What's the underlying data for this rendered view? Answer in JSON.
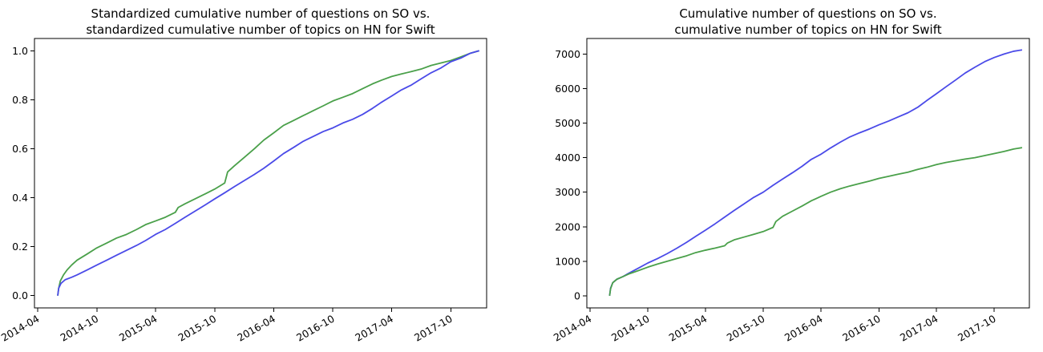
{
  "chart_data": [
    {
      "type": "line",
      "title_lines": [
        "Standardized cumulative number of questions on SO vs.",
        "standardized cumulative number of topics on HN for Swift"
      ],
      "xlabel": "",
      "ylabel": "",
      "x_type": "date",
      "xlim": [
        "2014-03-22",
        "2018-01-20"
      ],
      "ylim": [
        -0.05,
        1.05
      ],
      "yticks": [
        0.0,
        0.2,
        0.4,
        0.6,
        0.8,
        1.0
      ],
      "ytick_labels": [
        "0.0",
        "0.2",
        "0.4",
        "0.6",
        "0.8",
        "1.0"
      ],
      "xticks": [
        "2014-04-01",
        "2014-10-01",
        "2015-04-01",
        "2015-10-01",
        "2016-04-01",
        "2016-10-01",
        "2017-04-01",
        "2017-10-01"
      ],
      "xtick_labels": [
        "2014-04",
        "2014-10",
        "2015-04",
        "2015-10",
        "2016-04",
        "2016-10",
        "2017-04",
        "2017-10"
      ],
      "grid": false,
      "series": [
        {
          "color": "#4aa04a",
          "x": [
            "2014-06-02",
            "2014-06-05",
            "2014-06-10",
            "2014-06-20",
            "2014-07-01",
            "2014-07-15",
            "2014-08-01",
            "2014-09-01",
            "2014-10-01",
            "2014-11-01",
            "2014-12-01",
            "2015-01-01",
            "2015-02-01",
            "2015-03-01",
            "2015-04-01",
            "2015-05-01",
            "2015-06-01",
            "2015-06-10",
            "2015-07-01",
            "2015-08-01",
            "2015-09-01",
            "2015-10-01",
            "2015-11-01",
            "2015-11-10",
            "2015-12-01",
            "2016-01-01",
            "2016-02-01",
            "2016-03-01",
            "2016-04-01",
            "2016-05-01",
            "2016-06-01",
            "2016-07-01",
            "2016-08-01",
            "2016-09-01",
            "2016-10-01",
            "2016-11-01",
            "2016-12-01",
            "2017-01-01",
            "2017-02-01",
            "2017-03-01",
            "2017-04-01",
            "2017-05-01",
            "2017-06-01",
            "2017-07-01",
            "2017-08-01",
            "2017-09-01",
            "2017-10-01",
            "2017-11-01",
            "2017-12-01",
            "2017-12-28"
          ],
          "y": [
            0.0,
            0.03,
            0.06,
            0.085,
            0.105,
            0.125,
            0.145,
            0.17,
            0.195,
            0.215,
            0.235,
            0.25,
            0.27,
            0.29,
            0.305,
            0.32,
            0.34,
            0.36,
            0.375,
            0.395,
            0.415,
            0.435,
            0.46,
            0.505,
            0.53,
            0.565,
            0.6,
            0.635,
            0.665,
            0.695,
            0.715,
            0.735,
            0.755,
            0.775,
            0.795,
            0.81,
            0.825,
            0.845,
            0.865,
            0.88,
            0.895,
            0.905,
            0.915,
            0.925,
            0.94,
            0.95,
            0.96,
            0.975,
            0.99,
            1.0
          ]
        },
        {
          "color": "#4a4ae8",
          "x": [
            "2014-06-02",
            "2014-06-05",
            "2014-06-12",
            "2014-06-25",
            "2014-07-15",
            "2014-08-01",
            "2014-09-01",
            "2014-10-01",
            "2014-11-01",
            "2014-12-01",
            "2015-01-01",
            "2015-02-01",
            "2015-03-01",
            "2015-04-01",
            "2015-05-01",
            "2015-06-01",
            "2015-07-01",
            "2015-08-01",
            "2015-09-01",
            "2015-10-01",
            "2015-11-01",
            "2015-12-01",
            "2016-01-01",
            "2016-02-01",
            "2016-03-01",
            "2016-04-01",
            "2016-05-01",
            "2016-06-01",
            "2016-07-01",
            "2016-08-01",
            "2016-09-01",
            "2016-10-01",
            "2016-11-01",
            "2016-12-01",
            "2017-01-01",
            "2017-02-01",
            "2017-03-01",
            "2017-04-01",
            "2017-05-01",
            "2017-06-01",
            "2017-07-01",
            "2017-08-01",
            "2017-09-01",
            "2017-10-01",
            "2017-11-01",
            "2017-12-01",
            "2017-12-28"
          ],
          "y": [
            0.0,
            0.03,
            0.05,
            0.065,
            0.075,
            0.085,
            0.105,
            0.125,
            0.145,
            0.165,
            0.185,
            0.205,
            0.225,
            0.25,
            0.27,
            0.295,
            0.32,
            0.345,
            0.37,
            0.395,
            0.42,
            0.445,
            0.47,
            0.495,
            0.52,
            0.55,
            0.58,
            0.605,
            0.63,
            0.65,
            0.67,
            0.685,
            0.705,
            0.72,
            0.74,
            0.765,
            0.79,
            0.815,
            0.84,
            0.86,
            0.885,
            0.91,
            0.93,
            0.955,
            0.97,
            0.99,
            1.0
          ]
        }
      ]
    },
    {
      "type": "line",
      "title_lines": [
        "Cumulative number of questions on SO vs.",
        "cumulative number of topics on HN for Swift"
      ],
      "xlabel": "",
      "ylabel": "",
      "x_type": "date",
      "xlim": [
        "2014-03-22",
        "2018-01-20"
      ],
      "ylim": [
        -350,
        7450
      ],
      "yticks": [
        0,
        1000,
        2000,
        3000,
        4000,
        5000,
        6000,
        7000
      ],
      "ytick_labels": [
        "0",
        "1000",
        "2000",
        "3000",
        "4000",
        "5000",
        "6000",
        "7000"
      ],
      "xticks": [
        "2014-04-01",
        "2014-10-01",
        "2015-04-01",
        "2015-10-01",
        "2016-04-01",
        "2016-10-01",
        "2017-04-01",
        "2017-10-01"
      ],
      "xtick_labels": [
        "2014-04",
        "2014-10",
        "2015-04",
        "2015-10",
        "2016-04",
        "2016-10",
        "2017-04",
        "2017-10"
      ],
      "grid": false,
      "series": [
        {
          "color": "#4a4ae8",
          "x": [
            "2014-06-02",
            "2014-06-05",
            "2014-06-12",
            "2014-06-25",
            "2014-07-15",
            "2014-08-01",
            "2014-09-01",
            "2014-10-01",
            "2014-11-01",
            "2014-12-01",
            "2015-01-01",
            "2015-02-01",
            "2015-03-01",
            "2015-04-01",
            "2015-05-01",
            "2015-06-01",
            "2015-07-01",
            "2015-08-01",
            "2015-09-01",
            "2015-10-01",
            "2015-11-01",
            "2015-12-01",
            "2016-01-01",
            "2016-02-01",
            "2016-03-01",
            "2016-04-01",
            "2016-05-01",
            "2016-06-01",
            "2016-07-01",
            "2016-08-01",
            "2016-09-01",
            "2016-10-01",
            "2016-11-01",
            "2016-12-01",
            "2017-01-01",
            "2017-02-01",
            "2017-03-01",
            "2017-04-01",
            "2017-05-01",
            "2017-06-01",
            "2017-07-01",
            "2017-08-01",
            "2017-09-01",
            "2017-10-01",
            "2017-11-01",
            "2017-12-01",
            "2017-12-28"
          ],
          "y": [
            0,
            220,
            380,
            480,
            560,
            650,
            800,
            950,
            1080,
            1220,
            1380,
            1550,
            1720,
            1900,
            2080,
            2280,
            2470,
            2660,
            2850,
            3000,
            3200,
            3380,
            3560,
            3750,
            3950,
            4100,
            4280,
            4450,
            4600,
            4720,
            4830,
            4950,
            5060,
            5180,
            5300,
            5460,
            5650,
            5850,
            6050,
            6250,
            6450,
            6620,
            6780,
            6900,
            7000,
            7080,
            7120
          ]
        },
        {
          "color": "#4aa04a",
          "x": [
            "2014-06-02",
            "2014-06-05",
            "2014-06-12",
            "2014-06-25",
            "2014-07-15",
            "2014-08-01",
            "2014-09-01",
            "2014-10-01",
            "2014-11-01",
            "2014-12-01",
            "2015-01-01",
            "2015-02-01",
            "2015-03-01",
            "2015-04-01",
            "2015-05-01",
            "2015-06-01",
            "2015-06-10",
            "2015-07-01",
            "2015-08-01",
            "2015-09-01",
            "2015-10-01",
            "2015-11-01",
            "2015-11-10",
            "2015-12-01",
            "2016-01-01",
            "2016-02-01",
            "2016-03-01",
            "2016-04-01",
            "2016-05-01",
            "2016-06-01",
            "2016-07-01",
            "2016-08-01",
            "2016-09-01",
            "2016-10-01",
            "2016-11-01",
            "2016-12-01",
            "2017-01-01",
            "2017-02-01",
            "2017-03-01",
            "2017-04-01",
            "2017-05-01",
            "2017-06-01",
            "2017-07-01",
            "2017-08-01",
            "2017-09-01",
            "2017-10-01",
            "2017-11-01",
            "2017-12-01",
            "2017-12-28"
          ],
          "y": [
            0,
            200,
            380,
            480,
            560,
            630,
            730,
            830,
            920,
            1000,
            1080,
            1160,
            1250,
            1320,
            1380,
            1450,
            1530,
            1620,
            1700,
            1780,
            1860,
            1980,
            2150,
            2300,
            2450,
            2600,
            2750,
            2880,
            3000,
            3100,
            3180,
            3250,
            3320,
            3400,
            3460,
            3520,
            3580,
            3660,
            3720,
            3800,
            3860,
            3910,
            3960,
            4000,
            4060,
            4120,
            4180,
            4250,
            4290
          ]
        }
      ]
    }
  ]
}
